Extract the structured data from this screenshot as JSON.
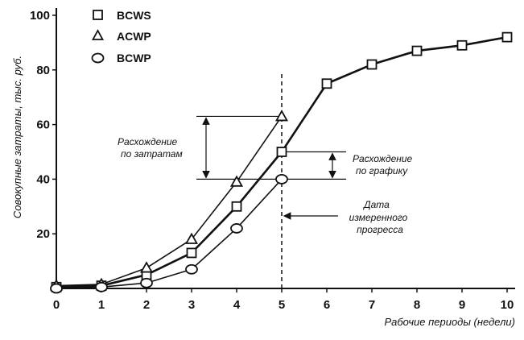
{
  "chart_data": {
    "type": "line",
    "xlabel": "Рабочие периоды (недели)",
    "ylabel": "Совокупные затраты, тыс. руб.",
    "xlim": [
      0,
      10
    ],
    "ylim": [
      0,
      100
    ],
    "x_ticks": [
      0,
      1,
      2,
      3,
      4,
      5,
      6,
      7,
      8,
      9,
      10
    ],
    "y_ticks": [
      20,
      40,
      60,
      80,
      100
    ],
    "grid": false,
    "legend_position": "top-left",
    "series": [
      {
        "name": "BCWS",
        "marker": "square",
        "x": [
          0,
          1,
          2,
          3,
          4,
          5,
          6,
          7,
          8,
          9,
          10
        ],
        "y": [
          0.5,
          1,
          5,
          13,
          30,
          50,
          75,
          82,
          87,
          89,
          92
        ]
      },
      {
        "name": "ACWP",
        "marker": "triangle",
        "x": [
          0,
          1,
          2,
          3,
          4,
          5
        ],
        "y": [
          1,
          1.5,
          7.5,
          18,
          39,
          63
        ]
      },
      {
        "name": "BCWP",
        "marker": "circle",
        "x": [
          0,
          1,
          2,
          3,
          4,
          5
        ],
        "y": [
          0,
          0.5,
          2,
          7,
          22,
          40
        ]
      }
    ],
    "annotations": {
      "status_date_x": 5,
      "cost_variance": {
        "label_line1": "Расхождение",
        "label_line2": "по затратам",
        "from": 40,
        "to": 63
      },
      "schedule_variance": {
        "label_line1": "Расхождение",
        "label_line2": "по графику",
        "from": 40,
        "to": 50
      },
      "status_date": {
        "label_line1": "Дата",
        "label_line2": "измеренного",
        "label_line3": "прогресса"
      }
    }
  }
}
